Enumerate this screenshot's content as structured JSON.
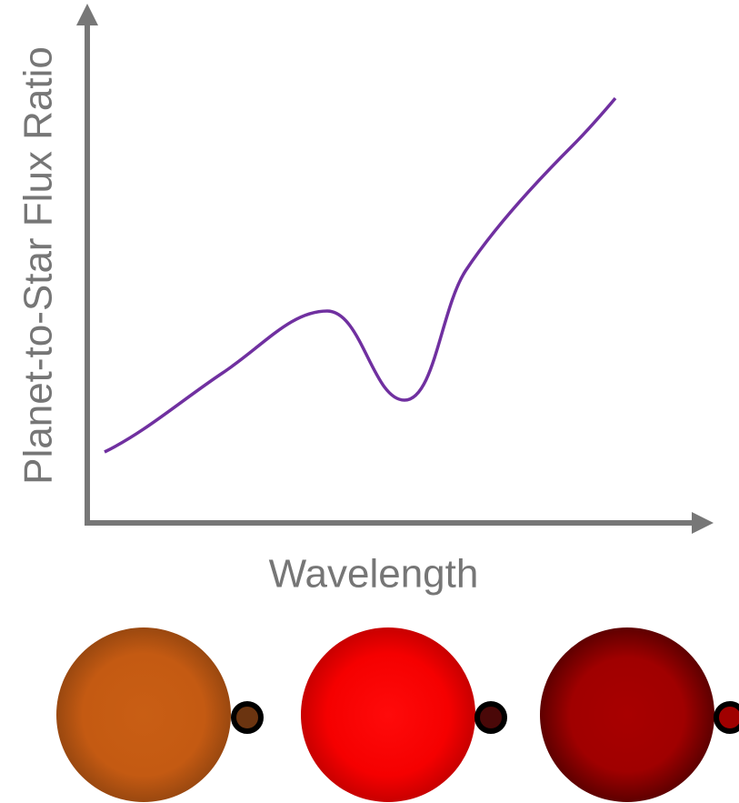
{
  "y_axis_label": "Planet-to-Star Flux Ratio",
  "x_axis_label": "Wavelength"
}
